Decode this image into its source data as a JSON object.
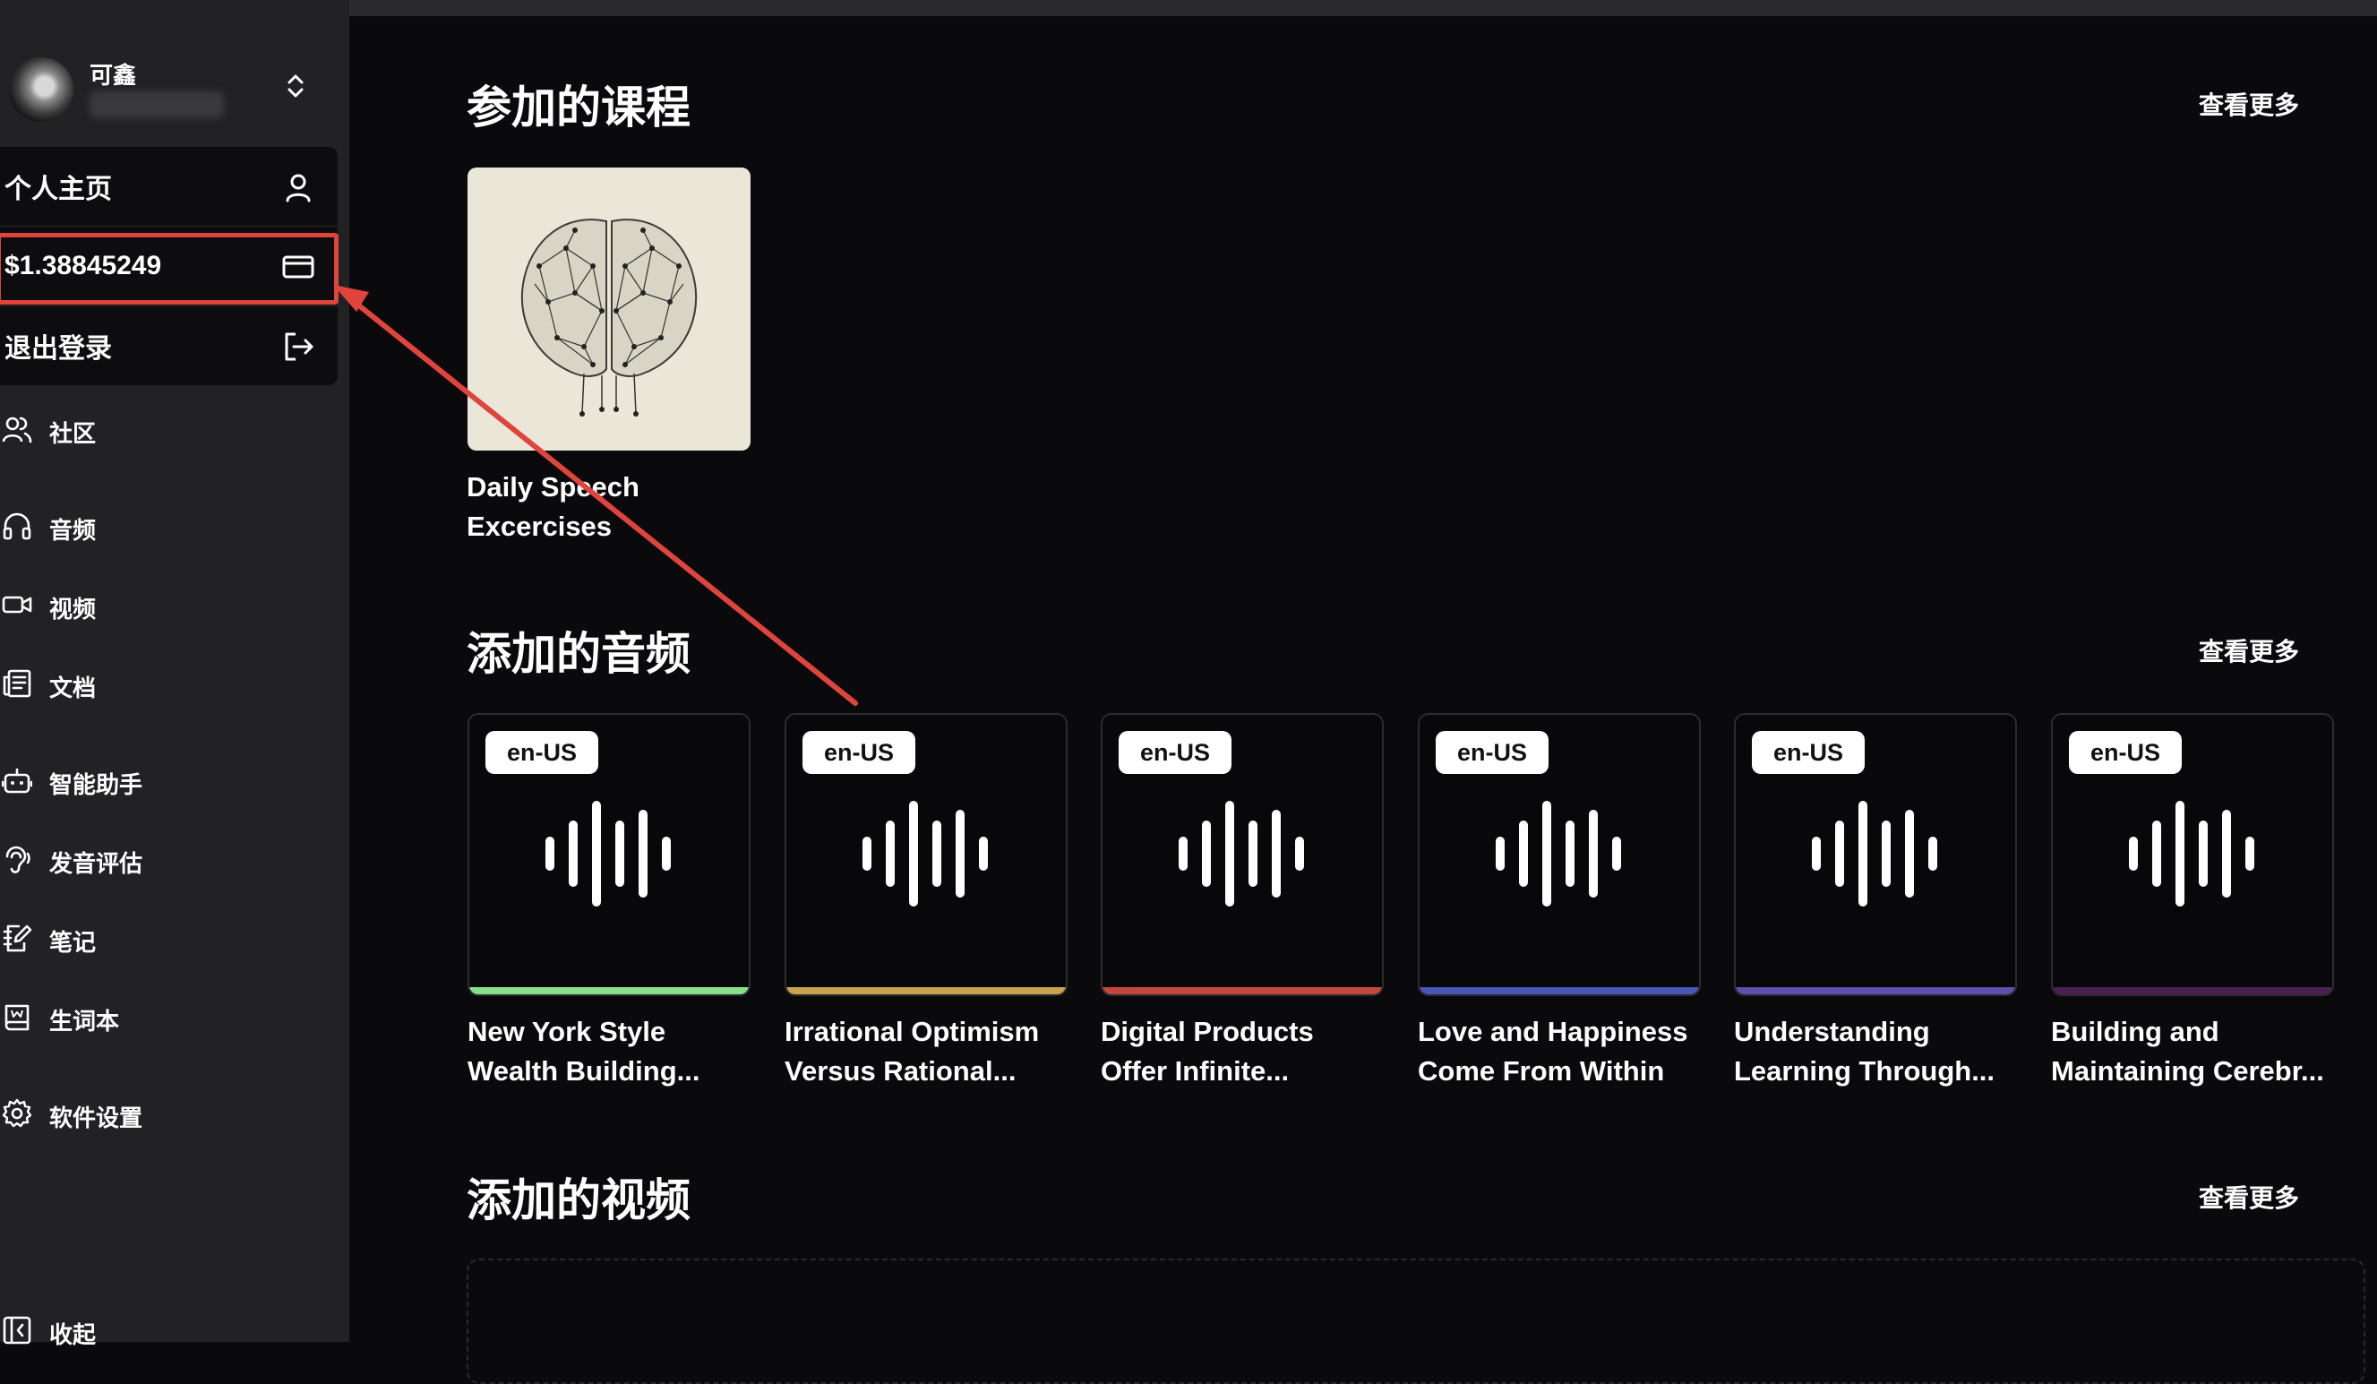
{
  "user": {
    "name": "可鑫"
  },
  "menu": {
    "profile_label": "个人主页",
    "balance": "$1.38845249",
    "logout_label": "退出登录"
  },
  "nav": {
    "community": "社区",
    "audio": "音频",
    "video": "视频",
    "documents": "文档",
    "assistant": "智能助手",
    "pronunciation": "发音评估",
    "notes": "笔记",
    "vocabulary": "生词本",
    "settings": "软件设置",
    "collapse": "收起"
  },
  "sections": {
    "courses": {
      "title": "参加的课程",
      "see_more": "查看更多"
    },
    "audios": {
      "title": "添加的音频",
      "see_more": "查看更多"
    },
    "videos": {
      "title": "添加的视频",
      "see_more": "查看更多"
    }
  },
  "courses": [
    {
      "title": "Daily Speech Excercises"
    }
  ],
  "audios": [
    {
      "lang": "en-US",
      "title": "New York Style Wealth Building...",
      "accent": "#86e08a"
    },
    {
      "lang": "en-US",
      "title": "Irrational Optimism Versus Rational...",
      "accent": "#c9a44f"
    },
    {
      "lang": "en-US",
      "title": "Digital Products Offer Infinite...",
      "accent": "#c4473f"
    },
    {
      "lang": "en-US",
      "title": "Love and Happiness Come From Within",
      "accent": "#4a56b8"
    },
    {
      "lang": "en-US",
      "title": "Understanding Learning Through...",
      "accent": "#5a52ad"
    },
    {
      "lang": "en-US",
      "title": "Building and Maintaining Cerebr...",
      "accent": "#4a1f52"
    }
  ],
  "colors": {
    "highlight": "#e0443c",
    "background": "#0a0a0c",
    "sidebar": "#222225"
  }
}
